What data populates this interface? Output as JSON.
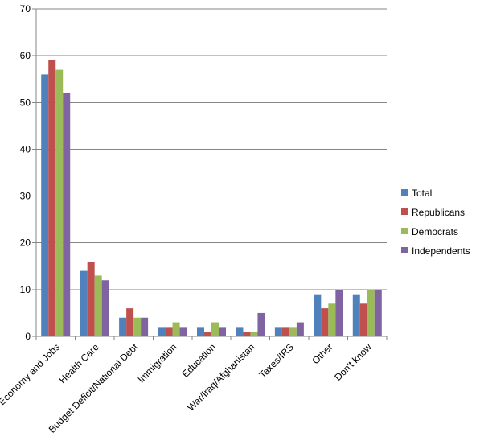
{
  "chart_data": {
    "type": "bar",
    "categories": [
      "Economy and Jobs",
      "Health Care",
      "Budget Deficit/National Debt",
      "Immigration",
      "Education",
      "War/Iraq/Afghanistan",
      "Taxes/IRS",
      "Other",
      "Don't know"
    ],
    "series": [
      {
        "name": "Total",
        "color": "#4F81BD",
        "values": [
          56,
          14,
          4,
          2,
          2,
          2,
          2,
          9,
          9
        ]
      },
      {
        "name": "Republicans",
        "color": "#C0504D",
        "values": [
          59,
          16,
          6,
          2,
          1,
          1,
          2,
          6,
          7
        ]
      },
      {
        "name": "Democrats",
        "color": "#9BBB59",
        "values": [
          57,
          13,
          4,
          3,
          3,
          1,
          2,
          7,
          10
        ]
      },
      {
        "name": "Independents",
        "color": "#8064A2",
        "values": [
          52,
          12,
          4,
          2,
          2,
          5,
          3,
          10,
          10
        ]
      }
    ],
    "ylim": [
      0,
      70
    ],
    "yticks": [
      0,
      10,
      20,
      30,
      40,
      50,
      60,
      70
    ],
    "grid": true,
    "legend_position": "right"
  }
}
